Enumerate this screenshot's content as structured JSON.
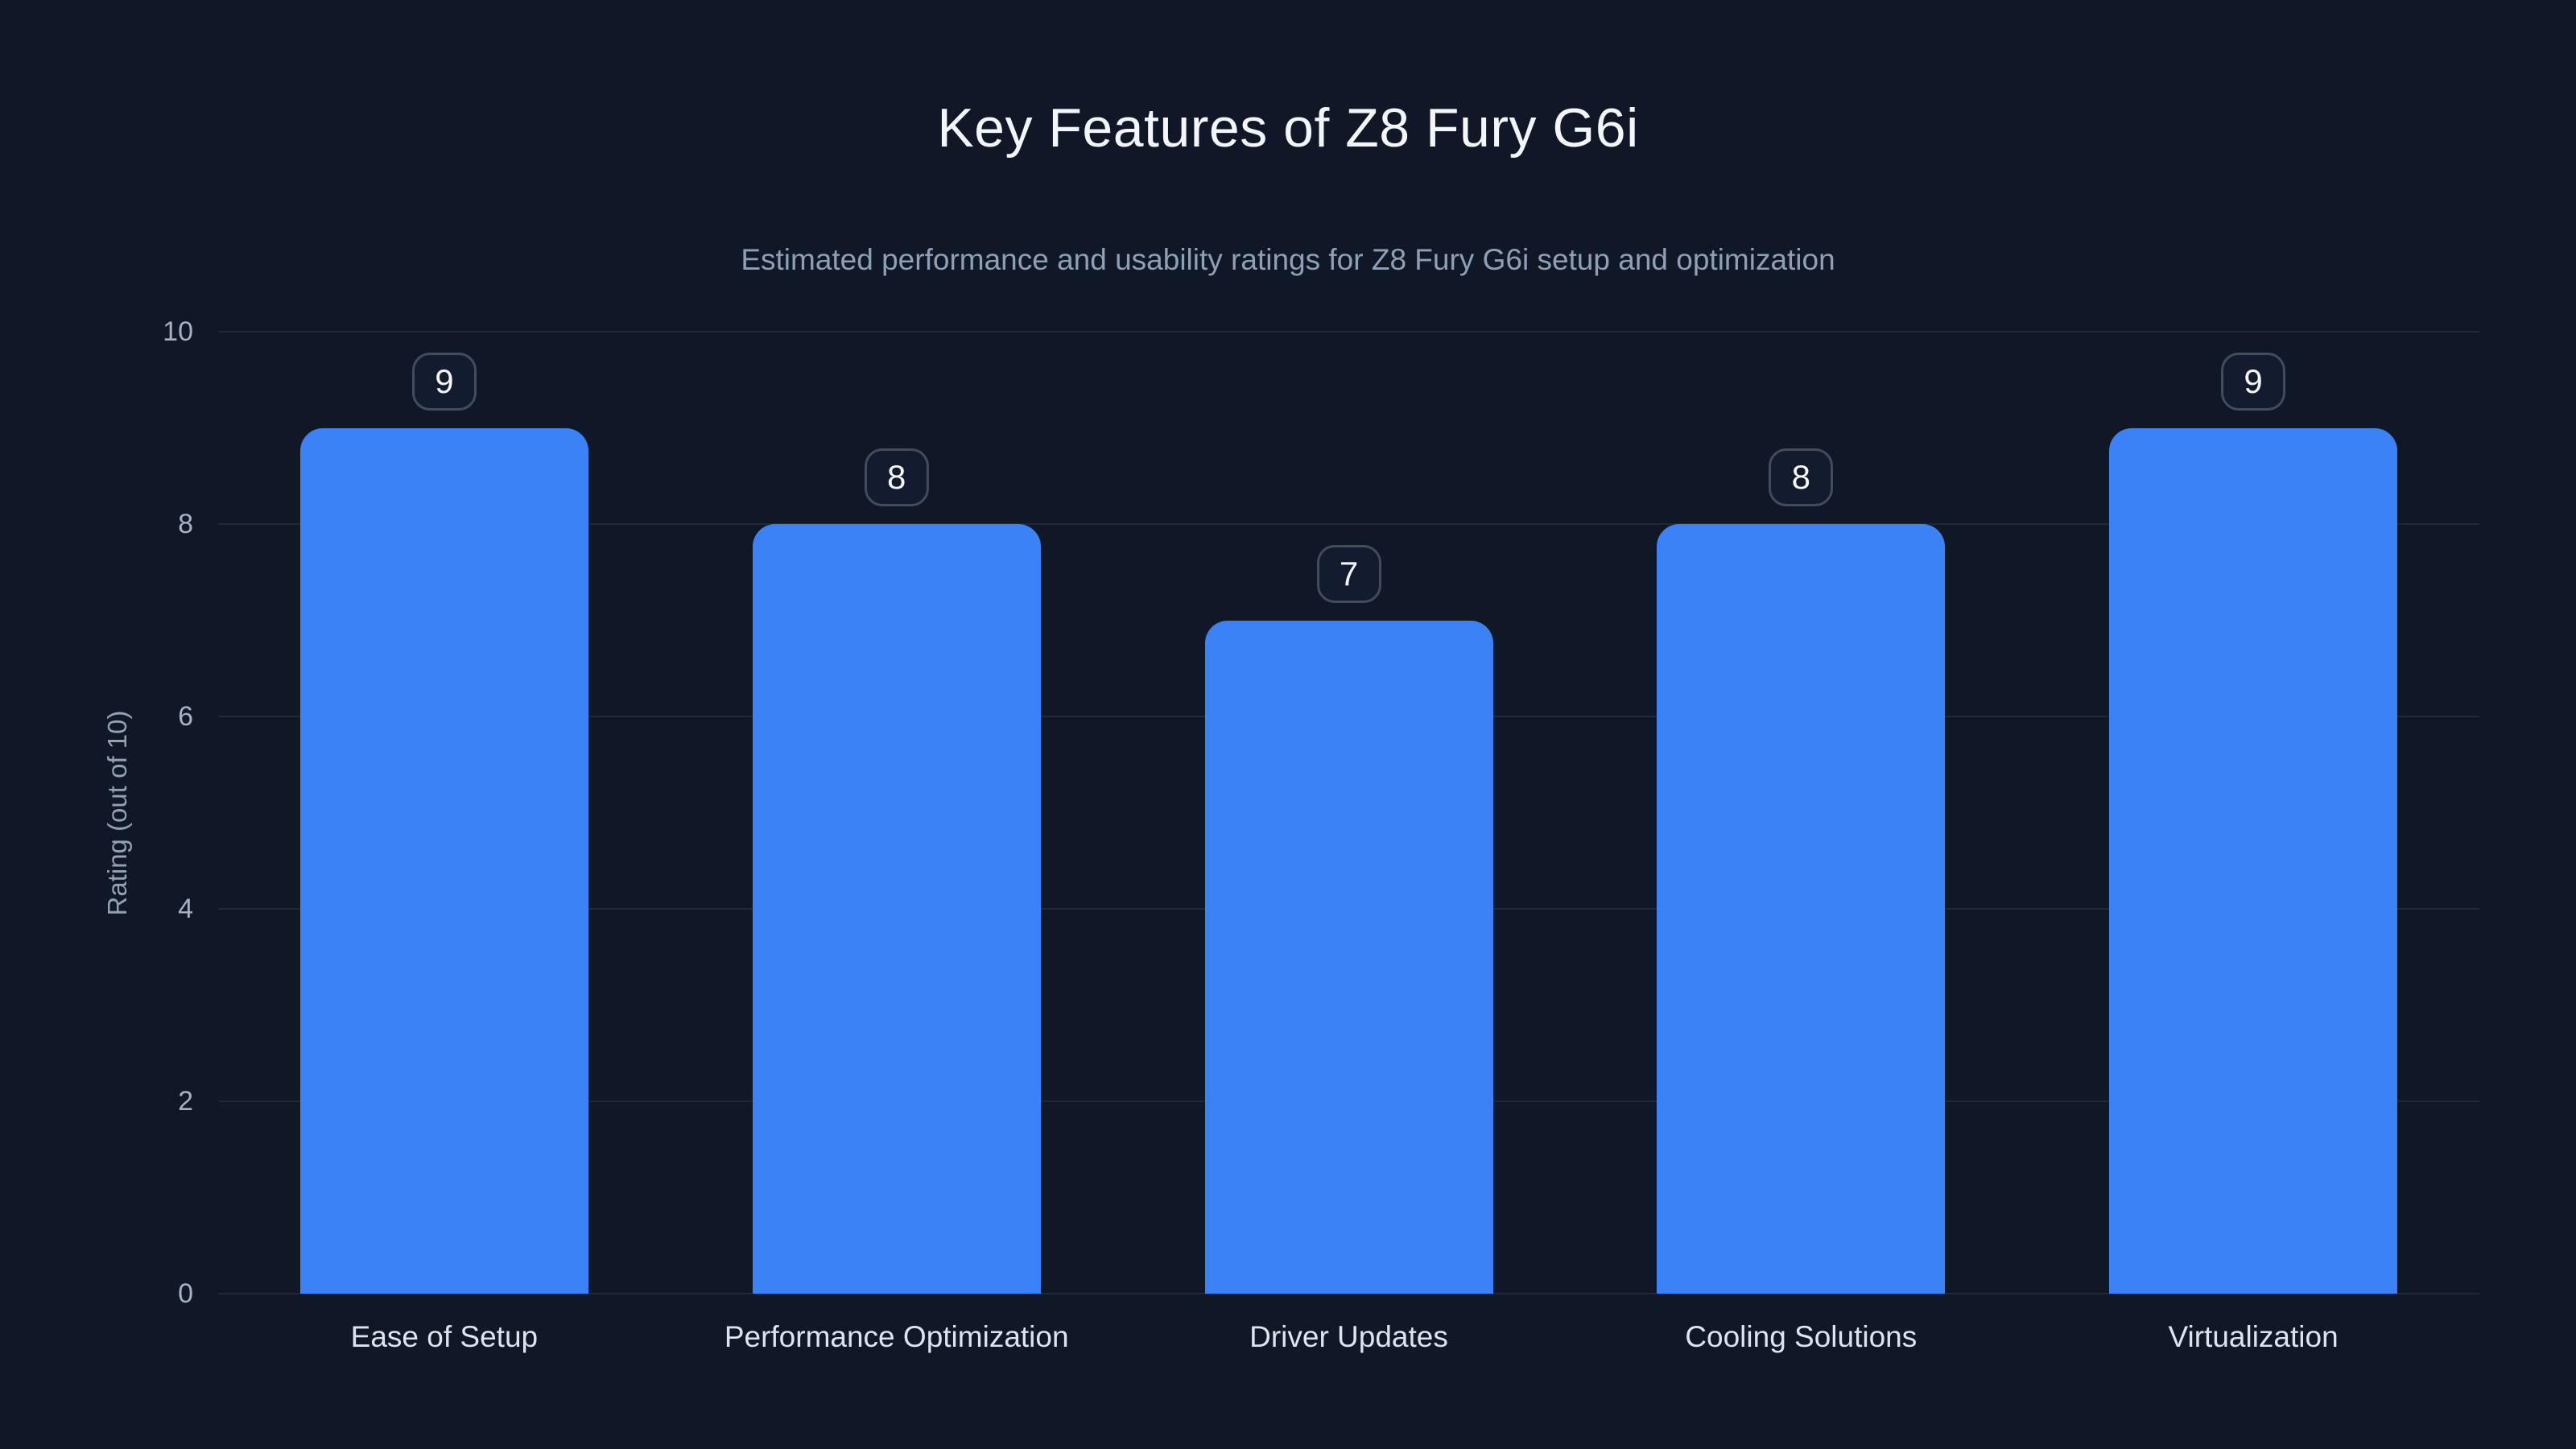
{
  "page": {
    "title": "Key Features of Z8 Fury G6i",
    "subtitle": "Estimated performance and usability ratings for Z8 Fury G6i setup and optimization"
  },
  "chart_data": {
    "type": "bar",
    "title": "Key Features of Z8 Fury G6i",
    "subtitle": "Estimated performance and usability ratings for Z8 Fury G6i setup and optimization",
    "categories": [
      "Ease of Setup",
      "Performance Optimization",
      "Driver Updates",
      "Cooling Solutions",
      "Virtualization"
    ],
    "values": [
      9,
      8,
      7,
      8,
      9
    ],
    "xlabel": "",
    "ylabel": "Rating (out of 10)",
    "ylim": [
      0,
      10
    ],
    "yticks": [
      0,
      2,
      4,
      6,
      8,
      10
    ],
    "grid": true,
    "legend": false,
    "value_labels": true,
    "bar_color": "#3b82f6"
  },
  "colors": {
    "background": "#101828",
    "bar": "#3b82f6",
    "gridline": "#1e2939",
    "title_text": "#f3f6fb",
    "subtitle_text": "#8fa0b6",
    "tick_text": "#a6b1c2",
    "category_text": "#dde4ed",
    "badge_border": "#414c5e",
    "badge_background": "#131c2e",
    "badge_text": "#f5f7fa"
  }
}
